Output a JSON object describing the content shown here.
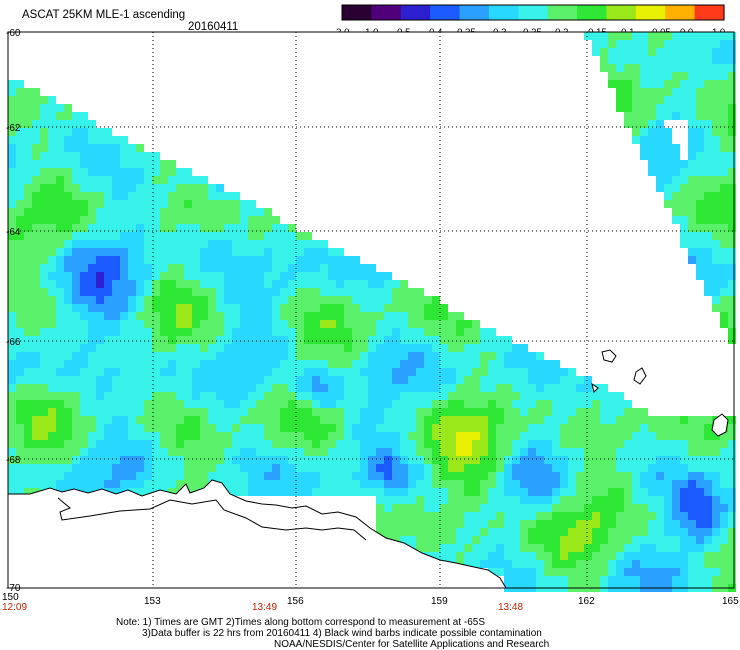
{
  "header": {
    "product_title": "ASCAT 25KM MLE-1 ascending",
    "date": "20160411"
  },
  "colorbar": {
    "tick_labels": [
      "-3.0",
      "-1.0",
      "-0.5",
      "-0.4",
      "-0.35",
      "-0.3",
      "-0.25",
      "-0.2",
      "-0.15",
      "-0.1",
      "-0.05",
      "0.0",
      "1.0"
    ],
    "colors": [
      "#2a0033",
      "#50007a",
      "#2c1fd0",
      "#1c5bff",
      "#2aa0ff",
      "#28d8ff",
      "#36f2e8",
      "#5af06a",
      "#2ee634",
      "#9ae81a",
      "#e6f000",
      "#ffb000",
      "#ff3a1a"
    ]
  },
  "map": {
    "lon_labels": [
      "150",
      "153",
      "156",
      "159",
      "162",
      "165"
    ],
    "lat_labels": [
      "-60",
      "-62",
      "-64",
      "-66",
      "-68",
      "-70"
    ],
    "time_labels": [
      "12:09",
      "13:49",
      "13:48"
    ],
    "time_label_color": "#cc2200",
    "grid_line_color": "#000000",
    "land_coast_color": "#000000"
  },
  "footer": {
    "note_line1": "Note: 1) Times are GMT 2)Times along bottom correspond to measurement at -65S",
    "note_line2": "3)Data buffer is 22 hrs from 20160411 4) Black wind barbs indicate possible contamination",
    "credit": "NOAA/NESDIS/Center for Satellite Applications and Research"
  }
}
